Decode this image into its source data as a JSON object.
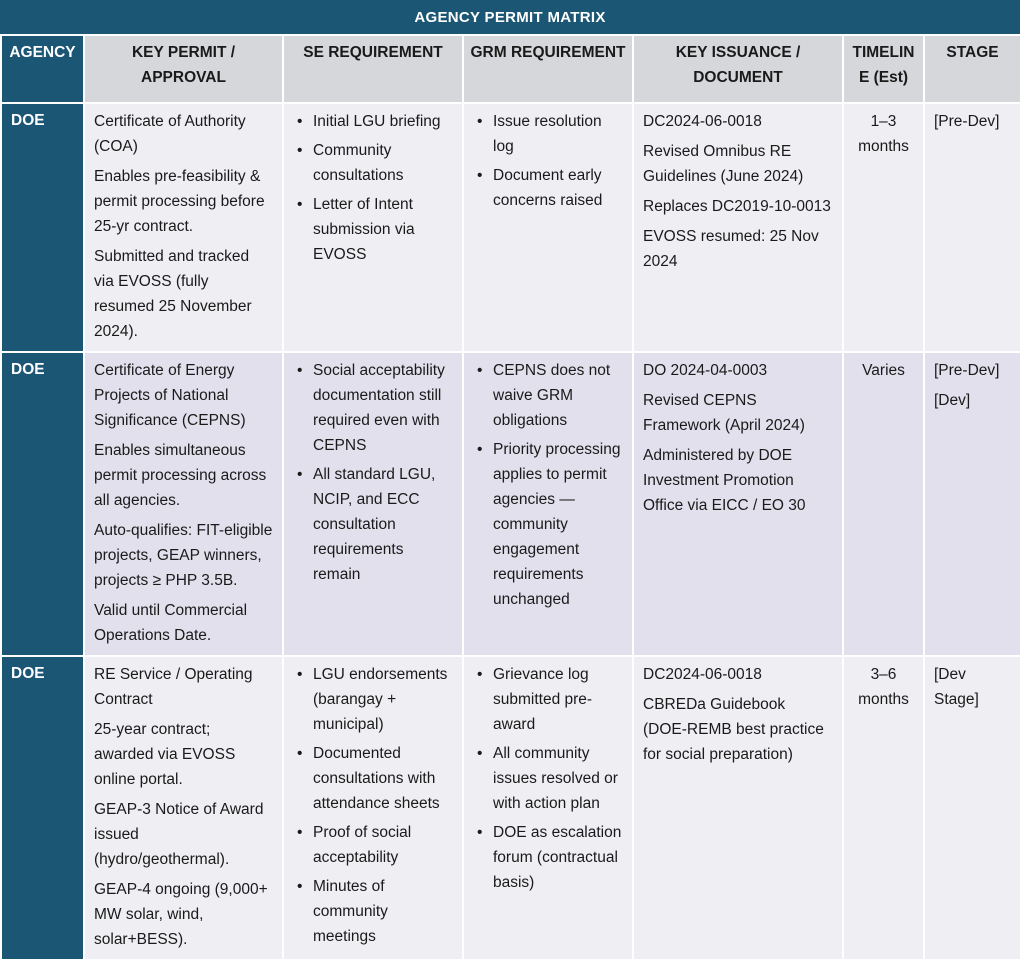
{
  "title": "AGENCY PERMIT MATRIX",
  "headers": [
    "AGENCY",
    "KEY PERMIT / APPROVAL",
    "SE REQUIREMENT",
    "GRM REQUIREMENT",
    "KEY ISSUANCE / DOCUMENT",
    "TIMELIN E (Est)",
    "STAGE"
  ],
  "rows": [
    {
      "agency": "DOE",
      "permit": [
        "Certificate of Authority (COA)",
        "Enables pre-feasibility & permit processing before 25-yr contract.",
        "Submitted and tracked via EVOSS (fully resumed 25 November 2024)."
      ],
      "se": [
        "Initial LGU briefing",
        "Community consultations",
        "Letter of Intent submission via EVOSS"
      ],
      "grm": [
        "Issue resolution log",
        "Document early concerns raised"
      ],
      "issuance": [
        "DC2024-06-0018",
        "Revised Omnibus RE Guidelines (June 2024)",
        "Replaces DC2019-10-0013",
        "EVOSS resumed: 25 Nov 2024"
      ],
      "timeline": "1–3 months",
      "stage": [
        "[Pre-Dev]"
      ]
    },
    {
      "agency": "DOE",
      "permit": [
        "Certificate of Energy Projects of National Significance (CEPNS)",
        "Enables simultaneous permit processing across all agencies.",
        "Auto-qualifies: FIT-eligible projects, GEAP winners, projects ≥ PHP 3.5B.",
        "Valid until Commercial Operations Date."
      ],
      "se": [
        "Social acceptability documentation still required even with CEPNS",
        "All standard LGU, NCIP, and ECC consultation requirements remain"
      ],
      "grm": [
        "CEPNS does not waive GRM obligations",
        "Priority processing applies to permit agencies — community engagement requirements unchanged"
      ],
      "issuance": [
        "DO 2024-04-0003",
        "Revised CEPNS Framework (April 2024)",
        "Administered by DOE Investment Promotion Office via EICC / EO 30"
      ],
      "timeline": "Varies",
      "stage": [
        "[Pre-Dev]",
        "[Dev]"
      ]
    },
    {
      "agency": "DOE",
      "permit": [
        "RE Service / Operating Contract",
        "25-year contract; awarded via EVOSS online portal.",
        "GEAP-3 Notice of Award issued (hydro/geothermal).",
        "GEAP-4 ongoing (9,000+ MW solar, wind, solar+BESS)."
      ],
      "se": [
        "LGU endorsements (barangay + municipal)",
        "Documented consultations with attendance sheets",
        "Proof of social acceptability",
        "Minutes of community meetings"
      ],
      "grm": [
        "Grievance log submitted pre-award",
        "All community issues resolved or with action plan",
        "DOE as escalation forum (contractual basis)"
      ],
      "issuance": [
        "DC2024-06-0018",
        "CBREDa Guidebook (DOE-REMB best practice for social preparation)"
      ],
      "timeline": "3–6 months",
      "stage": [
        "[Dev Stage]"
      ]
    }
  ]
}
